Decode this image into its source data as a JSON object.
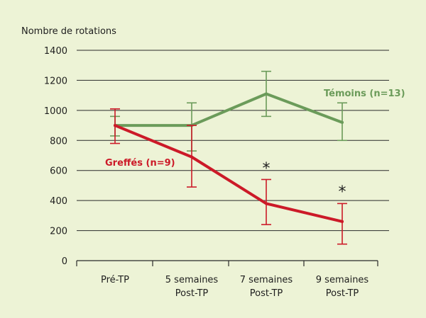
{
  "chart_data": {
    "type": "line",
    "ylabel": "Nombre de rotations",
    "categories": [
      [
        "Pré-TP"
      ],
      [
        "5 semaines",
        "Post-TP"
      ],
      [
        "7 semaines",
        "Post-TP"
      ],
      [
        "9 semaines",
        "Post-TP"
      ]
    ],
    "ylim": [
      0,
      1400
    ],
    "yticks": [
      0,
      200,
      400,
      600,
      800,
      1000,
      1200,
      1400
    ],
    "grid": true,
    "series": [
      {
        "name": "Témoins (n=13)",
        "color": "#6b9b5a",
        "values": [
          900,
          900,
          1110,
          920
        ],
        "error_low": [
          830,
          730,
          960,
          800
        ],
        "error_high": [
          960,
          1050,
          1260,
          1050
        ]
      },
      {
        "name": "Greffés (n=9)",
        "color": "#cc1a28",
        "values": [
          900,
          690,
          380,
          260
        ],
        "error_low": [
          780,
          490,
          240,
          110
        ],
        "error_high": [
          1010,
          900,
          540,
          380
        ]
      }
    ],
    "annotations": [
      {
        "text": "*",
        "category_index": 2
      },
      {
        "text": "*",
        "category_index": 3
      }
    ]
  }
}
